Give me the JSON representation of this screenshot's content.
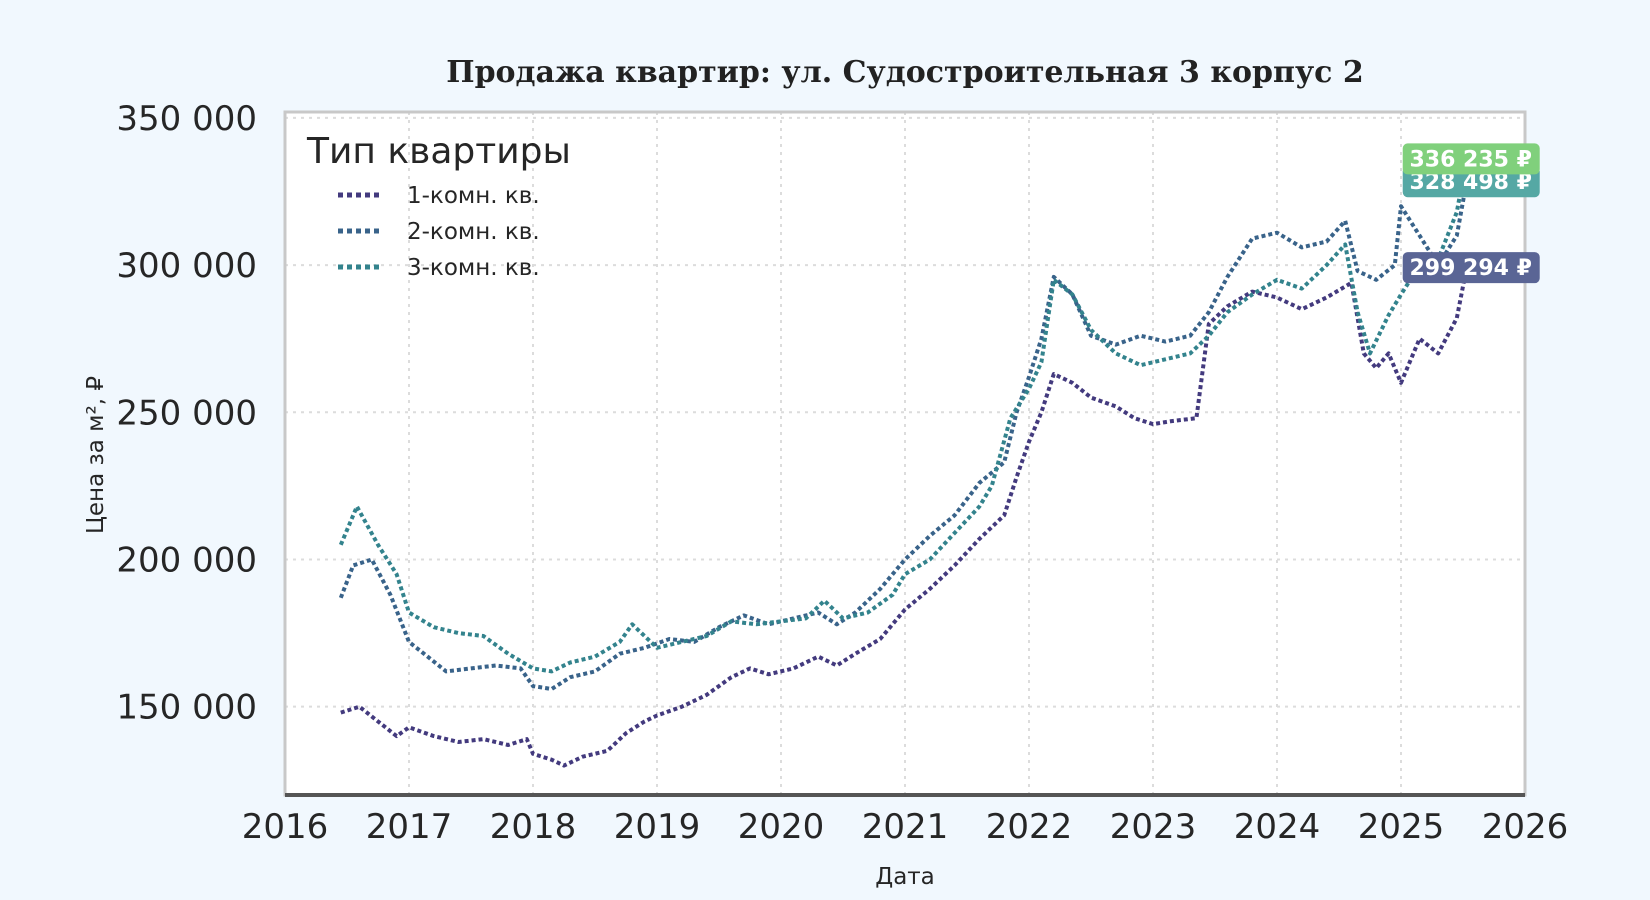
{
  "chart_data": {
    "type": "line",
    "title": "Продажа квартир: ул. Судостроительная 3 корпус 2",
    "xlabel": "Дата",
    "ylabel": "Цена за м², ₽",
    "xlim": [
      2016,
      2026
    ],
    "ylim": [
      120000,
      352000
    ],
    "x_ticks": [
      "2016",
      "2017",
      "2018",
      "2019",
      "2020",
      "2021",
      "2022",
      "2023",
      "2024",
      "2025",
      "2026"
    ],
    "y_ticks": [
      "150 000",
      "200 000",
      "250 000",
      "300 000",
      "350 000"
    ],
    "grid": true,
    "legend": {
      "title": "Тип квартиры",
      "placement": "top-left"
    },
    "series": [
      {
        "name": "1-комн. кв.",
        "color": "#433a7e",
        "end_label": "299 294 ₽",
        "end_value": 299294,
        "end_label_color": "#5a6595",
        "points": [
          [
            2016.45,
            148000
          ],
          [
            2016.6,
            150000
          ],
          [
            2016.75,
            145000
          ],
          [
            2016.9,
            140000
          ],
          [
            2017.0,
            143000
          ],
          [
            2017.2,
            140000
          ],
          [
            2017.4,
            138000
          ],
          [
            2017.6,
            139000
          ],
          [
            2017.8,
            137000
          ],
          [
            2017.95,
            139000
          ],
          [
            2018.0,
            134000
          ],
          [
            2018.15,
            132000
          ],
          [
            2018.25,
            130000
          ],
          [
            2018.4,
            133000
          ],
          [
            2018.6,
            135000
          ],
          [
            2018.75,
            141000
          ],
          [
            2018.9,
            145000
          ],
          [
            2019.0,
            147000
          ],
          [
            2019.2,
            150000
          ],
          [
            2019.4,
            154000
          ],
          [
            2019.6,
            160000
          ],
          [
            2019.75,
            163000
          ],
          [
            2019.9,
            161000
          ],
          [
            2020.1,
            163000
          ],
          [
            2020.3,
            167000
          ],
          [
            2020.45,
            164000
          ],
          [
            2020.6,
            168000
          ],
          [
            2020.8,
            173000
          ],
          [
            2021.0,
            183000
          ],
          [
            2021.2,
            190000
          ],
          [
            2021.4,
            198000
          ],
          [
            2021.6,
            207000
          ],
          [
            2021.8,
            215000
          ],
          [
            2021.9,
            228000
          ],
          [
            2022.0,
            240000
          ],
          [
            2022.1,
            250000
          ],
          [
            2022.2,
            263000
          ],
          [
            2022.35,
            260000
          ],
          [
            2022.5,
            255000
          ],
          [
            2022.7,
            252000
          ],
          [
            2022.85,
            248000
          ],
          [
            2023.0,
            246000
          ],
          [
            2023.15,
            247000
          ],
          [
            2023.35,
            248000
          ],
          [
            2023.45,
            280000
          ],
          [
            2023.6,
            286000
          ],
          [
            2023.8,
            291000
          ],
          [
            2024.0,
            289000
          ],
          [
            2024.2,
            285000
          ],
          [
            2024.4,
            289000
          ],
          [
            2024.6,
            294000
          ],
          [
            2024.7,
            270000
          ],
          [
            2024.8,
            265000
          ],
          [
            2024.9,
            270000
          ],
          [
            2025.0,
            260000
          ],
          [
            2025.15,
            275000
          ],
          [
            2025.3,
            270000
          ],
          [
            2025.45,
            282000
          ],
          [
            2025.53,
            299294
          ]
        ]
      },
      {
        "name": "2-комн. кв.",
        "color": "#39638a",
        "end_label": "328 498 ₽",
        "end_value": 328498,
        "end_label_color": "#55a8a4",
        "points": [
          [
            2016.45,
            187000
          ],
          [
            2016.55,
            198000
          ],
          [
            2016.7,
            200000
          ],
          [
            2016.85,
            188000
          ],
          [
            2017.0,
            172000
          ],
          [
            2017.15,
            167000
          ],
          [
            2017.3,
            162000
          ],
          [
            2017.5,
            163000
          ],
          [
            2017.7,
            164000
          ],
          [
            2017.9,
            163000
          ],
          [
            2018.0,
            157000
          ],
          [
            2018.15,
            156000
          ],
          [
            2018.3,
            160000
          ],
          [
            2018.5,
            162000
          ],
          [
            2018.7,
            168000
          ],
          [
            2018.9,
            170000
          ],
          [
            2019.1,
            173000
          ],
          [
            2019.3,
            172000
          ],
          [
            2019.5,
            177000
          ],
          [
            2019.7,
            181000
          ],
          [
            2019.9,
            178000
          ],
          [
            2020.1,
            180000
          ],
          [
            2020.3,
            182000
          ],
          [
            2020.45,
            178000
          ],
          [
            2020.6,
            182000
          ],
          [
            2020.8,
            190000
          ],
          [
            2021.0,
            200000
          ],
          [
            2021.2,
            208000
          ],
          [
            2021.4,
            215000
          ],
          [
            2021.6,
            226000
          ],
          [
            2021.8,
            233000
          ],
          [
            2021.9,
            250000
          ],
          [
            2022.0,
            262000
          ],
          [
            2022.1,
            275000
          ],
          [
            2022.2,
            296000
          ],
          [
            2022.35,
            290000
          ],
          [
            2022.5,
            276000
          ],
          [
            2022.7,
            273000
          ],
          [
            2022.9,
            276000
          ],
          [
            2023.1,
            274000
          ],
          [
            2023.3,
            276000
          ],
          [
            2023.45,
            284000
          ],
          [
            2023.6,
            296000
          ],
          [
            2023.8,
            309000
          ],
          [
            2024.0,
            311000
          ],
          [
            2024.2,
            306000
          ],
          [
            2024.4,
            308000
          ],
          [
            2024.55,
            315000
          ],
          [
            2024.65,
            298000
          ],
          [
            2024.8,
            295000
          ],
          [
            2024.95,
            300000
          ],
          [
            2025.0,
            320000
          ],
          [
            2025.15,
            310000
          ],
          [
            2025.3,
            300000
          ],
          [
            2025.45,
            310000
          ],
          [
            2025.53,
            328498
          ]
        ]
      },
      {
        "name": "3-комн. кв.",
        "color": "#33838d",
        "end_label": "336 235 ₽",
        "end_value": 336235,
        "end_label_color": "#80d07c",
        "points": [
          [
            2016.45,
            205000
          ],
          [
            2016.58,
            218000
          ],
          [
            2016.75,
            205000
          ],
          [
            2016.9,
            195000
          ],
          [
            2017.0,
            182000
          ],
          [
            2017.2,
            177000
          ],
          [
            2017.4,
            175000
          ],
          [
            2017.6,
            174000
          ],
          [
            2017.8,
            168000
          ],
          [
            2018.0,
            163000
          ],
          [
            2018.15,
            162000
          ],
          [
            2018.3,
            165000
          ],
          [
            2018.5,
            167000
          ],
          [
            2018.7,
            172000
          ],
          [
            2018.8,
            178000
          ],
          [
            2019.0,
            170000
          ],
          [
            2019.2,
            172000
          ],
          [
            2019.4,
            174000
          ],
          [
            2019.6,
            179000
          ],
          [
            2019.8,
            178000
          ],
          [
            2020.0,
            179000
          ],
          [
            2020.2,
            180000
          ],
          [
            2020.35,
            186000
          ],
          [
            2020.5,
            180000
          ],
          [
            2020.7,
            182000
          ],
          [
            2020.9,
            188000
          ],
          [
            2021.0,
            195000
          ],
          [
            2021.2,
            200000
          ],
          [
            2021.4,
            209000
          ],
          [
            2021.6,
            218000
          ],
          [
            2021.7,
            225000
          ],
          [
            2021.85,
            248000
          ],
          [
            2022.0,
            258000
          ],
          [
            2022.1,
            267000
          ],
          [
            2022.2,
            295000
          ],
          [
            2022.35,
            290000
          ],
          [
            2022.5,
            278000
          ],
          [
            2022.7,
            270000
          ],
          [
            2022.9,
            266000
          ],
          [
            2023.1,
            268000
          ],
          [
            2023.3,
            270000
          ],
          [
            2023.45,
            276000
          ],
          [
            2023.6,
            284000
          ],
          [
            2023.8,
            290000
          ],
          [
            2024.0,
            295000
          ],
          [
            2024.2,
            292000
          ],
          [
            2024.4,
            300000
          ],
          [
            2024.55,
            307000
          ],
          [
            2024.65,
            284000
          ],
          [
            2024.75,
            270000
          ],
          [
            2024.9,
            283000
          ],
          [
            2025.0,
            290000
          ],
          [
            2025.15,
            300000
          ],
          [
            2025.3,
            302000
          ],
          [
            2025.45,
            318000
          ],
          [
            2025.53,
            336235
          ]
        ]
      }
    ]
  }
}
